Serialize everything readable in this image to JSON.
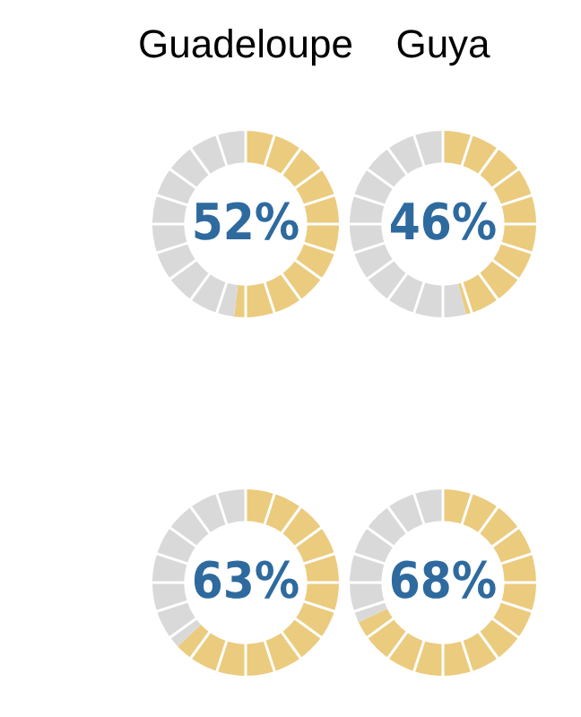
{
  "chart_data": [
    {
      "type": "donut",
      "title": "Guadeloupe",
      "categories": [
        null,
        null
      ],
      "values": [
        52,
        48
      ],
      "colors": [
        "#ebcb7e",
        "#d9d9d9"
      ],
      "annotations": [
        "52%"
      ]
    },
    {
      "type": "donut",
      "title": "Guya",
      "categories": [
        null,
        null
      ],
      "values": [
        46,
        54
      ],
      "colors": [
        "#ebcb7e",
        "#d9d9d9"
      ],
      "annotations": [
        "46%"
      ]
    },
    {
      "type": "donut",
      "categories": [
        null,
        null
      ],
      "values": [
        63,
        37
      ],
      "colors": [
        "#ebcb7e",
        "#d9d9d9"
      ],
      "annotations": [
        "63%"
      ]
    },
    {
      "type": "donut",
      "categories": [
        null,
        null
      ],
      "values": [
        68,
        32
      ],
      "colors": [
        "#ebcb7e",
        "#d9d9d9"
      ],
      "annotations": [
        "68%"
      ]
    }
  ]
}
